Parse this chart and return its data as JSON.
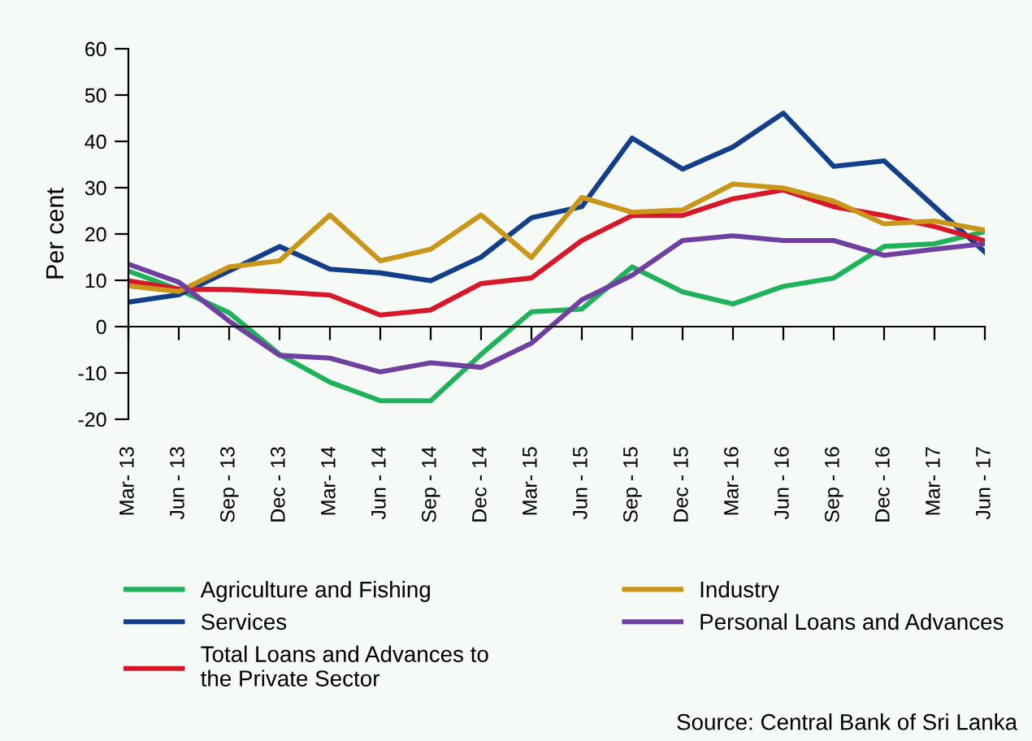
{
  "chart_data": {
    "type": "line",
    "ylabel": "Per cent",
    "categories": [
      "Mar- 13",
      "Jun - 13",
      "Sep - 13",
      "Dec - 13",
      "Mar- 14",
      "Jun - 14",
      "Sep - 14",
      "Dec - 14",
      "Mar- 15",
      "Jun - 15",
      "Sep - 15",
      "Dec - 15",
      "Mar- 16",
      "Jun - 16",
      "Sep - 16",
      "Dec - 16",
      "Mar- 17",
      "Jun - 17"
    ],
    "series": [
      {
        "name": "Agriculture and Fishing",
        "color": "#1fb25a",
        "values": [
          12,
          8,
          3,
          -6,
          -12,
          -16,
          -16,
          -6,
          3.2,
          3.8,
          12.9,
          7.5,
          4.9,
          8.7,
          10.5,
          17.3,
          17.9,
          20.5
        ]
      },
      {
        "name": "Services",
        "color": "#133f8a",
        "values": [
          5.3,
          6.9,
          12,
          17.3,
          12.4,
          11.6,
          9.9,
          15,
          23.5,
          25.9,
          40.7,
          34,
          38.8,
          46.1,
          34.6,
          35.8,
          25.9,
          16.1
        ]
      },
      {
        "name": "Total Loans and Advances to\nthe Private Sector",
        "color": "#d7182a",
        "values": [
          9.9,
          8.1,
          8,
          7.5,
          6.8,
          2.5,
          3.6,
          9.3,
          10.5,
          18.6,
          24,
          24,
          27.6,
          29.5,
          25.9,
          24,
          21.6,
          18.5
        ]
      },
      {
        "name": "Industry",
        "color": "#c9961a",
        "values": [
          8.8,
          7.6,
          12.9,
          14.2,
          24.1,
          14.2,
          16.7,
          24.1,
          14.9,
          27.9,
          24.7,
          25.2,
          30.8,
          29.9,
          27.1,
          22.2,
          22.8,
          20.8
        ]
      },
      {
        "name": "Personal Loans and Advances",
        "color": "#7040a0",
        "values": [
          13.5,
          9.6,
          1.2,
          -6.2,
          -6.8,
          -9.8,
          -7.8,
          -8.8,
          -3.6,
          5.8,
          11.1,
          18.6,
          19.6,
          18.6,
          18.6,
          15.4,
          16.7,
          17.9
        ]
      }
    ],
    "ylim": [
      -20,
      60
    ],
    "yticks": [
      -20,
      -10,
      0,
      10,
      20,
      30,
      40,
      50,
      60
    ],
    "legend": "bottom",
    "marker": "none",
    "line_style": "solid",
    "annotations": [
      "Source: Central Bank of Sri Lanka"
    ]
  }
}
